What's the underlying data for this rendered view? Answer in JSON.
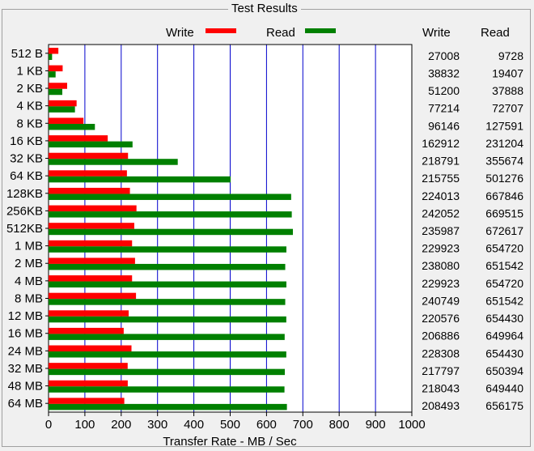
{
  "group_title": "Test Results",
  "colors": {
    "write": "#ff0000",
    "read": "#008000",
    "grid": "#0000cd",
    "background": "#f0f0f0",
    "plot": "#ffffff"
  },
  "table_headers": {
    "write": "Write",
    "read": "Read"
  },
  "chart_data": {
    "type": "bar",
    "orientation": "horizontal",
    "categories": [
      "512 B",
      "1 KB",
      "2 KB",
      "4 KB",
      "8 KB",
      "16 KB",
      "32 KB",
      "64 KB",
      "128KB",
      "256KB",
      "512KB",
      "1 MB",
      "2 MB",
      "4 MB",
      "8 MB",
      "12 MB",
      "16 MB",
      "24 MB",
      "32 MB",
      "48 MB",
      "64 MB"
    ],
    "series": [
      {
        "name": "Write",
        "color": "#ff0000",
        "values": [
          27008,
          38832,
          51200,
          77214,
          96146,
          162912,
          218791,
          215755,
          224013,
          242052,
          235987,
          229923,
          238080,
          229923,
          240749,
          220576,
          206886,
          228308,
          217797,
          218043,
          208493
        ]
      },
      {
        "name": "Read",
        "color": "#008000",
        "values": [
          9728,
          19407,
          37888,
          72707,
          127591,
          231204,
          355674,
          501276,
          667846,
          669515,
          672617,
          654720,
          651542,
          654720,
          651542,
          654430,
          649964,
          654430,
          650394,
          649440,
          656175
        ]
      }
    ],
    "xlabel": "Transfer Rate - MB / Sec",
    "ylabel": "",
    "xlim": [
      0,
      1000
    ],
    "xticks": [
      "0",
      "100",
      "200",
      "300",
      "400",
      "500",
      "600",
      "700",
      "800",
      "900",
      "1000"
    ],
    "legend": "top",
    "grid": true
  }
}
